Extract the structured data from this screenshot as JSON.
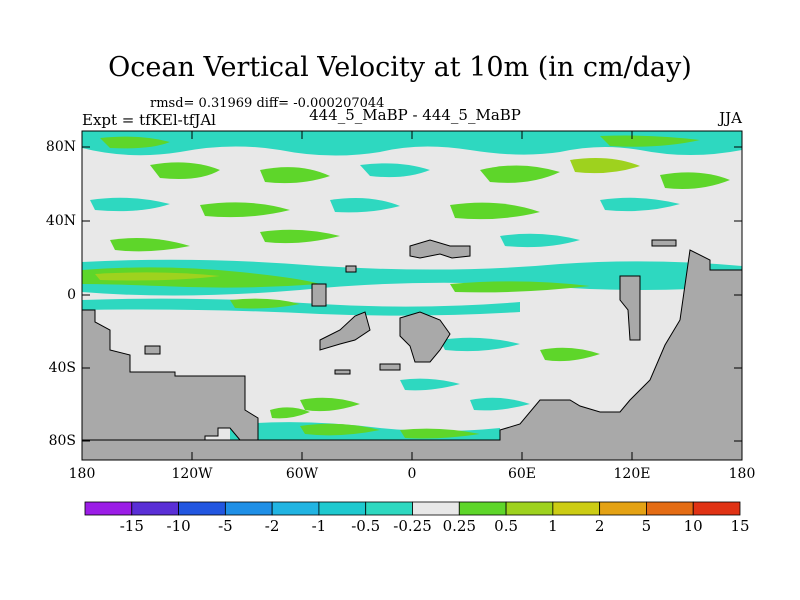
{
  "title": "Ocean Vertical Velocity at 10m (in cm/day)",
  "stats": "rmsd= 0.31969 diff= -0.000207044",
  "expt": "Expt = tfKEl-tfJAl",
  "cases": "444_5_MaBP - 444_5_MaBP",
  "season": "JJA",
  "y_ticks": [
    "80N",
    "40N",
    "0",
    "40S",
    "80S"
  ],
  "x_ticks": [
    "180",
    "120W",
    "60W",
    "0",
    "60E",
    "120E",
    "180"
  ],
  "colorbar": {
    "labels": [
      "-15",
      "-10",
      "-5",
      "-2",
      "-1",
      "-0.5",
      "-0.25",
      "0.25",
      "0.5",
      "1",
      "2",
      "5",
      "10",
      "15"
    ],
    "colors": [
      "#9b1de6",
      "#5a2fd6",
      "#2256e0",
      "#1f8fe6",
      "#21b4e2",
      "#1ec9cf",
      "#2ed8c0",
      "#e8e8e8",
      "#5ed62a",
      "#9ed21e",
      "#cccc14",
      "#e4a214",
      "#e46c14",
      "#e03214"
    ]
  },
  "colors": {
    "land": "#a9a9a9",
    "ocean_neutral": "#e8e8e8"
  }
}
